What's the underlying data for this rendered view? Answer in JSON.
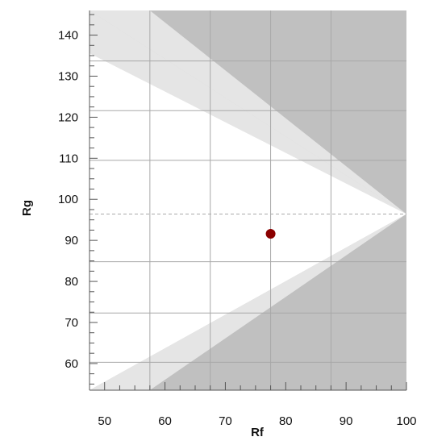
{
  "chart_data": {
    "type": "scatter",
    "title": "",
    "xlabel": "Rf",
    "ylabel": "Rg",
    "xlim": [
      47.5,
      100
    ],
    "ylim": [
      53.5,
      146
    ],
    "x_ticks": [
      50,
      60,
      70,
      80,
      90,
      100
    ],
    "y_ticks": [
      60,
      70,
      80,
      90,
      100,
      110,
      120,
      130,
      140
    ],
    "x_tick_labels": [
      "50",
      "60",
      "70",
      "80",
      "90",
      "100"
    ],
    "y_tick_labels": [
      "60",
      "70",
      "80",
      "90",
      "100",
      "110",
      "120",
      "130",
      "140"
    ],
    "grid": true,
    "reference_line": {
      "y": 96.4,
      "style": "dashed"
    },
    "regions": [
      {
        "name": "outer-gray",
        "color": "#c0c0c0",
        "upper_boundary": [
          [
            57.5,
            146
          ],
          [
            100,
            96.4
          ]
        ],
        "lower_boundary": [
          [
            57.5,
            53.5
          ],
          [
            100,
            96.4
          ]
        ]
      },
      {
        "name": "light-gray-band",
        "color": "#e5e5e5",
        "upper_boundary": [
          [
            47.5,
            146
          ],
          [
            100,
            96.4
          ]
        ],
        "lower_boundary": [
          [
            47.5,
            53.5
          ],
          [
            100,
            96.4
          ]
        ]
      }
    ],
    "points": [
      {
        "x": 77.5,
        "y": 91.6,
        "color": "#8b0000"
      }
    ],
    "colors": {
      "point": "#8b0000",
      "outer_gray": "#c0c0c0",
      "light_band": "#e5e5e5",
      "grid": "#a8a8a8",
      "dashed_line": "#aaaaaa"
    }
  }
}
